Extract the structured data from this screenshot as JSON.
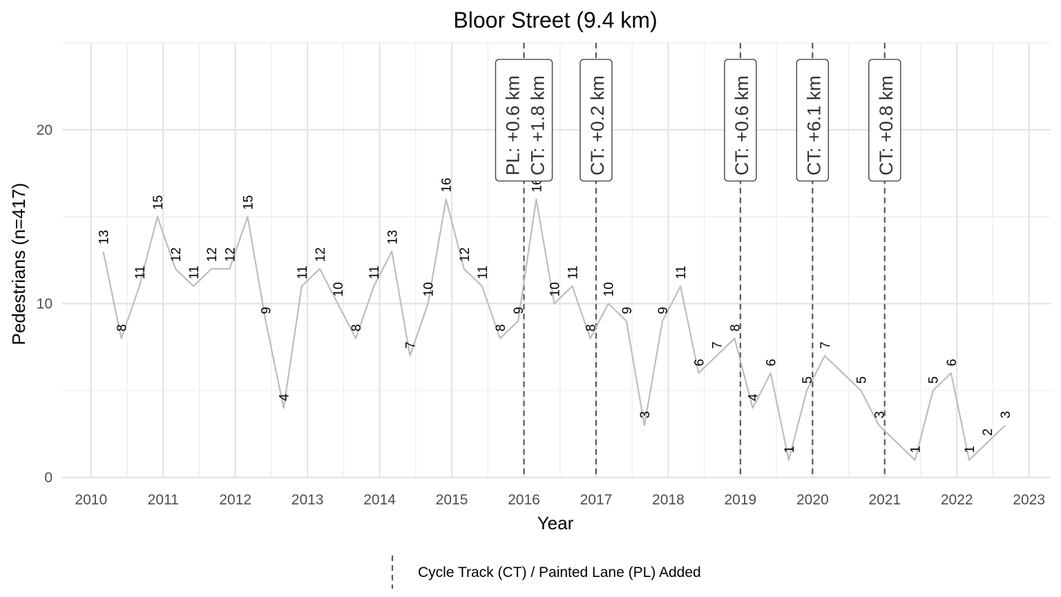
{
  "chart_data": {
    "type": "line",
    "title": "Bloor Street (9.4 km)",
    "xlabel": "Year",
    "ylabel": "Pedestrians (n=417)",
    "xlim": [
      2009.6,
      2023.3
    ],
    "ylim": [
      0,
      25
    ],
    "x_ticks": [
      2010,
      2011,
      2012,
      2013,
      2014,
      2015,
      2016,
      2017,
      2018,
      2019,
      2020,
      2021,
      2022,
      2023
    ],
    "y_ticks": [
      0,
      10,
      20
    ],
    "grid": true,
    "series": [
      {
        "color": "#bdbdbd",
        "points": [
          {
            "x": 2010.17,
            "y": 13
          },
          {
            "x": 2010.42,
            "y": 8
          },
          {
            "x": 2010.67,
            "y": 11
          },
          {
            "x": 2010.92,
            "y": 15
          },
          {
            "x": 2011.17,
            "y": 12
          },
          {
            "x": 2011.42,
            "y": 11
          },
          {
            "x": 2011.67,
            "y": 12
          },
          {
            "x": 2011.92,
            "y": 12
          },
          {
            "x": 2012.17,
            "y": 15
          },
          {
            "x": 2012.42,
            "y": 9
          },
          {
            "x": 2012.67,
            "y": 4
          },
          {
            "x": 2012.92,
            "y": 11
          },
          {
            "x": 2013.17,
            "y": 12
          },
          {
            "x": 2013.42,
            "y": 10
          },
          {
            "x": 2013.67,
            "y": 8
          },
          {
            "x": 2013.92,
            "y": 11
          },
          {
            "x": 2014.17,
            "y": 13
          },
          {
            "x": 2014.42,
            "y": 7
          },
          {
            "x": 2014.67,
            "y": 10
          },
          {
            "x": 2014.92,
            "y": 16
          },
          {
            "x": 2015.17,
            "y": 12
          },
          {
            "x": 2015.42,
            "y": 11
          },
          {
            "x": 2015.67,
            "y": 8
          },
          {
            "x": 2015.92,
            "y": 9
          },
          {
            "x": 2016.17,
            "y": 16
          },
          {
            "x": 2016.42,
            "y": 10
          },
          {
            "x": 2016.67,
            "y": 11
          },
          {
            "x": 2016.92,
            "y": 8
          },
          {
            "x": 2017.17,
            "y": 10
          },
          {
            "x": 2017.42,
            "y": 9
          },
          {
            "x": 2017.67,
            "y": 3
          },
          {
            "x": 2017.92,
            "y": 9
          },
          {
            "x": 2018.17,
            "y": 11
          },
          {
            "x": 2018.42,
            "y": 6
          },
          {
            "x": 2018.67,
            "y": 7
          },
          {
            "x": 2018.92,
            "y": 8
          },
          {
            "x": 2019.17,
            "y": 4
          },
          {
            "x": 2019.42,
            "y": 6
          },
          {
            "x": 2019.67,
            "y": 1
          },
          {
            "x": 2019.92,
            "y": 5
          },
          {
            "x": 2020.17,
            "y": 7
          },
          {
            "x": 2020.67,
            "y": 5
          },
          {
            "x": 2020.92,
            "y": 3
          },
          {
            "x": 2021.42,
            "y": 1
          },
          {
            "x": 2021.67,
            "y": 5
          },
          {
            "x": 2021.92,
            "y": 6
          },
          {
            "x": 2022.17,
            "y": 1
          },
          {
            "x": 2022.42,
            "y": 2
          },
          {
            "x": 2022.67,
            "y": 3
          }
        ]
      }
    ],
    "events": [
      {
        "x": 2016.0,
        "lines": [
          "PL: +0.6 km",
          "CT: +1.8 km"
        ]
      },
      {
        "x": 2017.0,
        "lines": [
          "CT: +0.2 km"
        ]
      },
      {
        "x": 2019.0,
        "lines": [
          "CT: +0.6 km"
        ]
      },
      {
        "x": 2020.0,
        "lines": [
          "CT: +6.1 km"
        ]
      },
      {
        "x": 2021.0,
        "lines": [
          "CT: +0.8 km"
        ]
      }
    ],
    "legend": {
      "position": "bottom",
      "label": "Cycle Track (CT) / Painted Lane (PL) Added",
      "line_color": "#595959"
    }
  }
}
